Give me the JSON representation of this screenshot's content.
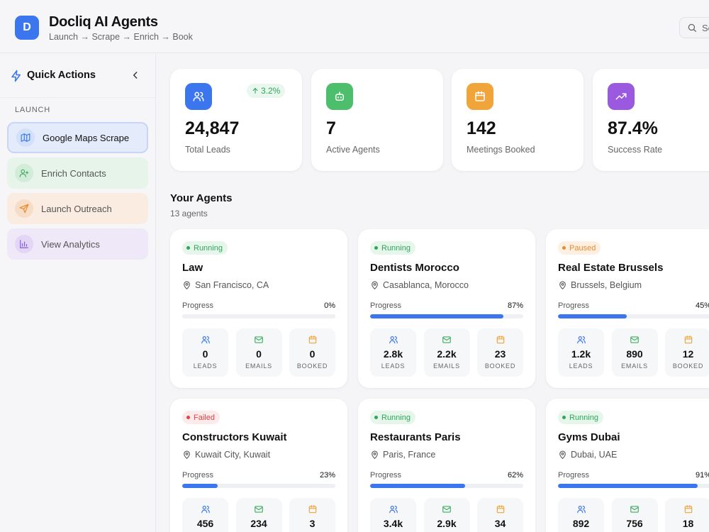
{
  "app": {
    "logo_letter": "D",
    "title": "Docliq AI Agents",
    "subtitle": "Launch → Scrape → Enrich → Book",
    "search_text": "Se"
  },
  "sidebar": {
    "title": "Quick Actions",
    "section_label": "LAUNCH",
    "actions": [
      {
        "label": "Google Maps Scrape",
        "icon": "map-icon",
        "color": "#3b76ee"
      },
      {
        "label": "Enrich Contacts",
        "icon": "user-plus-icon",
        "color": "#3fae62"
      },
      {
        "label": "Launch Outreach",
        "icon": "send-icon",
        "color": "#e88b2c"
      },
      {
        "label": "View Analytics",
        "icon": "bar-chart-icon",
        "color": "#8a5ad6"
      }
    ]
  },
  "stats": [
    {
      "value": "24,847",
      "label": "Total Leads",
      "icon": "users-icon",
      "color": "#3b76ee",
      "delta": "3.2%"
    },
    {
      "value": "7",
      "label": "Active Agents",
      "icon": "bot-icon",
      "color": "#4cbe6c"
    },
    {
      "value": "142",
      "label": "Meetings Booked",
      "icon": "calendar-icon",
      "color": "#f0a43a"
    },
    {
      "value": "87.4%",
      "label": "Success Rate",
      "icon": "trending-up-icon",
      "color": "#9b59e0"
    }
  ],
  "agents_section": {
    "title": "Your Agents",
    "count": "13 agents"
  },
  "agent_labels": {
    "progress": "Progress",
    "leads": "LEADS",
    "emails": "EMAILS",
    "booked": "BOOKED"
  },
  "agents": [
    {
      "status": "Running",
      "name": "Law",
      "location": "San Francisco, CA",
      "progress": 0,
      "progress_text": "0%",
      "leads": "0",
      "emails": "0",
      "booked": "0"
    },
    {
      "status": "Running",
      "name": "Dentists Morocco",
      "location": "Casablanca, Morocco",
      "progress": 87,
      "progress_text": "87%",
      "leads": "2.8k",
      "emails": "2.2k",
      "booked": "23"
    },
    {
      "status": "Paused",
      "name": "Real Estate Brussels",
      "location": "Brussels, Belgium",
      "progress": 45,
      "progress_text": "45%",
      "leads": "1.2k",
      "emails": "890",
      "booked": "12"
    },
    {
      "status": "Failed",
      "name": "Constructors Kuwait",
      "location": "Kuwait City, Kuwait",
      "progress": 23,
      "progress_text": "23%",
      "leads": "456",
      "emails": "234",
      "booked": "3"
    },
    {
      "status": "Running",
      "name": "Restaurants Paris",
      "location": "Paris, France",
      "progress": 62,
      "progress_text": "62%",
      "leads": "3.4k",
      "emails": "2.9k",
      "booked": "34"
    },
    {
      "status": "Running",
      "name": "Gyms Dubai",
      "location": "Dubai, UAE",
      "progress": 91,
      "progress_text": "91%",
      "leads": "892",
      "emails": "756",
      "booked": "18"
    }
  ]
}
